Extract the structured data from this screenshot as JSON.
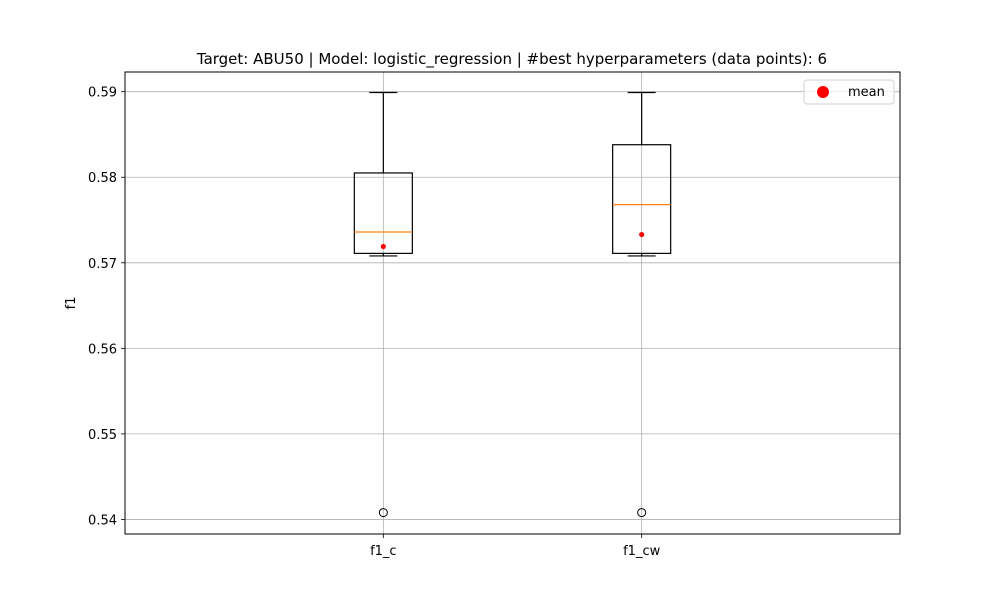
{
  "chart_data": {
    "type": "box",
    "title": "Target: ABU50 | Model: logistic_regression | #best hyperparameters (data points): 6",
    "xlabel": "",
    "ylabel": "f1",
    "ylim": [
      0.5383,
      0.5923
    ],
    "yticks": [
      0.54,
      0.55,
      0.56,
      0.57,
      0.58,
      0.59
    ],
    "ytick_labels": [
      "0.54",
      "0.55",
      "0.56",
      "0.57",
      "0.58",
      "0.59"
    ],
    "grid": true,
    "legend": {
      "position": "top-right",
      "entries": [
        "mean"
      ]
    },
    "colors": {
      "box": "#000000",
      "median": "#ff7f0e",
      "mean": "#ff0000",
      "grid": "#b0b0b0"
    },
    "categories": [
      "f1_c",
      "f1_cw"
    ],
    "boxes": [
      {
        "label": "f1_c",
        "whisker_low": 0.5708,
        "q1": 0.5711,
        "median": 0.5736,
        "q3": 0.5805,
        "whisker_high": 0.5899,
        "mean": 0.5719,
        "outliers": [
          0.5408
        ]
      },
      {
        "label": "f1_cw",
        "whisker_low": 0.5708,
        "q1": 0.5711,
        "median": 0.5768,
        "q3": 0.5838,
        "whisker_high": 0.5899,
        "mean": 0.5733,
        "outliers": [
          0.5408
        ]
      }
    ]
  }
}
